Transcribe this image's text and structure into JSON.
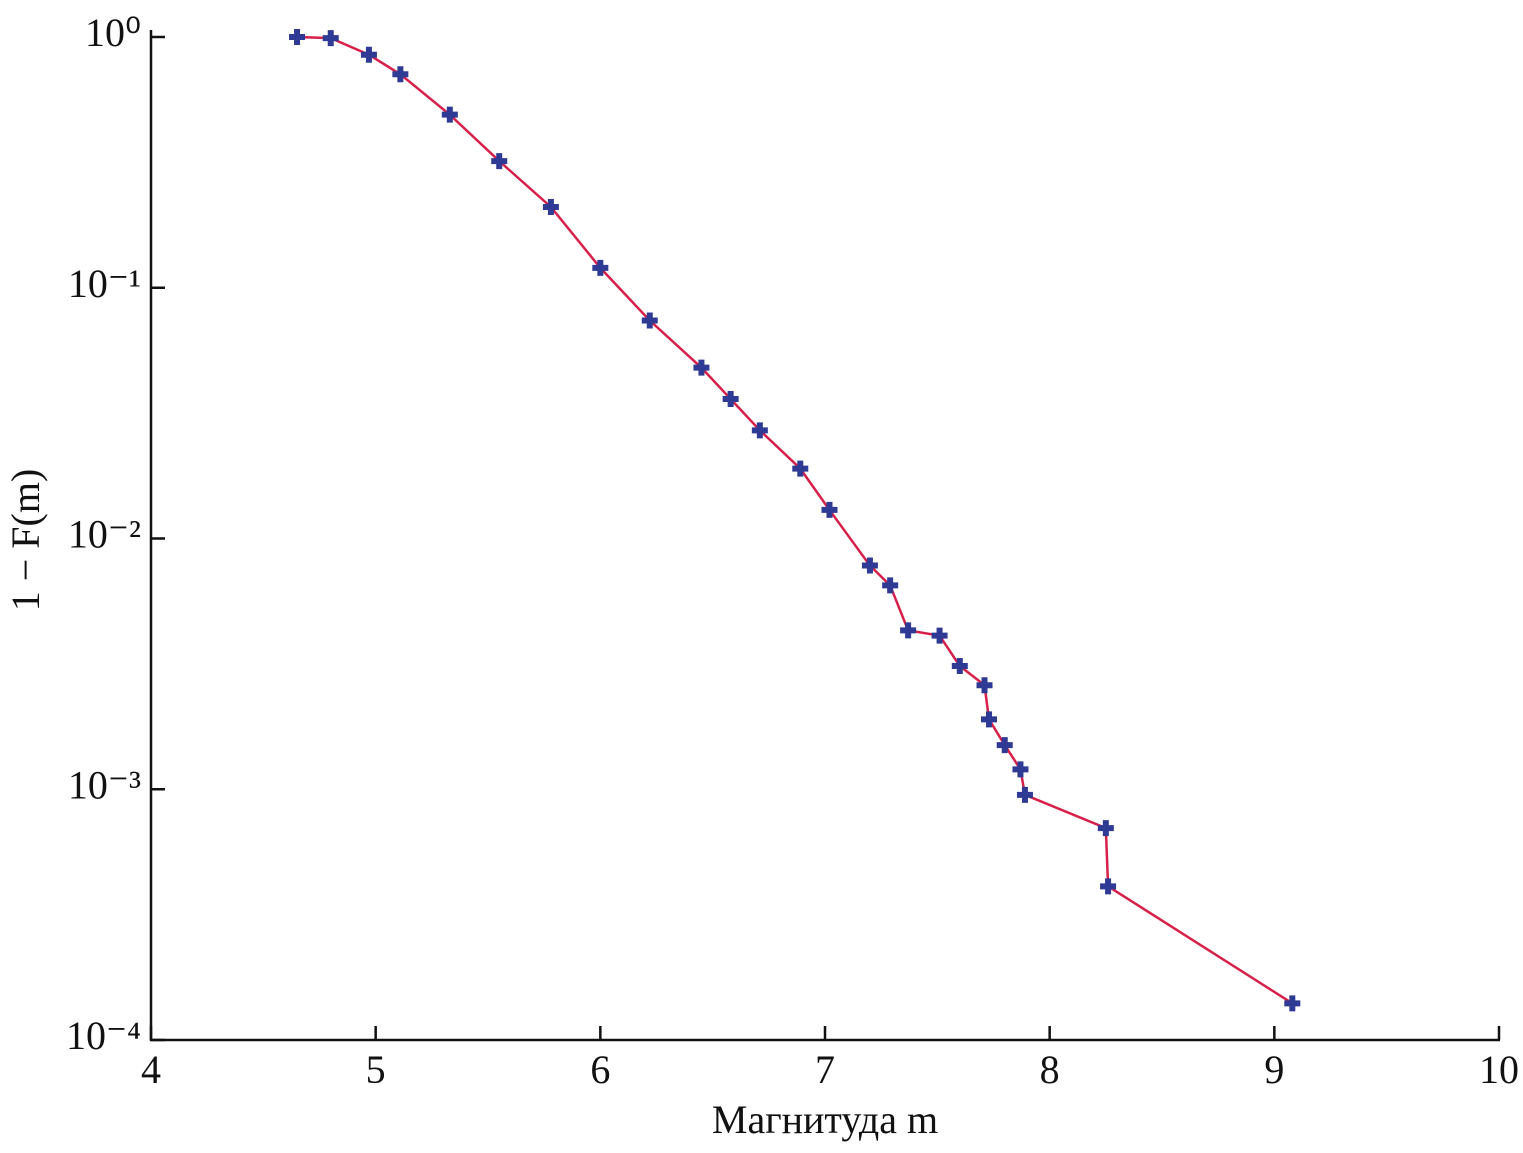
{
  "chart_data": {
    "type": "line",
    "x_label": "Магнитуда m",
    "y_label": "1 − F(m)",
    "x": [
      4.65,
      4.8,
      4.97,
      5.11,
      5.33,
      5.55,
      5.78,
      6.0,
      6.22,
      6.45,
      6.58,
      6.71,
      6.89,
      7.02,
      7.2,
      7.29,
      7.37,
      7.51,
      7.6,
      7.71,
      7.73,
      7.8,
      7.87,
      7.89,
      8.25,
      8.26,
      9.08
    ],
    "values": [
      1.0,
      0.99,
      0.85,
      0.71,
      0.49,
      0.32,
      0.21,
      0.12,
      0.074,
      0.048,
      0.036,
      0.027,
      0.019,
      0.013,
      0.0078,
      0.0065,
      0.0043,
      0.0041,
      0.0031,
      0.0026,
      0.0019,
      0.0015,
      0.0012,
      0.00095,
      0.0007,
      0.00041,
      0.00014
    ],
    "color": "#2e3a94",
    "line_color": "#d6204a",
    "log_y": true,
    "xlim": [
      4,
      10
    ],
    "xticks": [
      4,
      5,
      6,
      7,
      8,
      9,
      10
    ],
    "ylim": [
      0.0001,
      1
    ],
    "yticks": [
      {
        "value": 1,
        "label": "10⁰"
      },
      {
        "value": 0.1,
        "label": "10⁻¹"
      },
      {
        "value": 0.01,
        "label": "10⁻²"
      },
      {
        "value": 0.001,
        "label": "10⁻³"
      },
      {
        "value": 0.0001,
        "label": "10⁻⁴"
      }
    ]
  }
}
